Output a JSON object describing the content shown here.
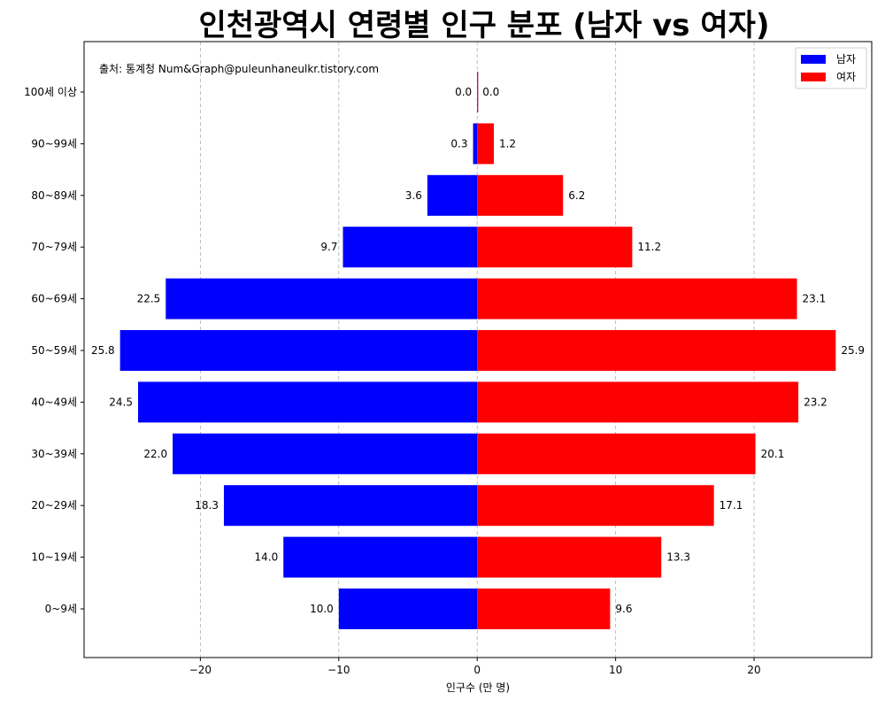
{
  "chart_data": {
    "type": "bar",
    "orientation": "horizontal",
    "title": "인천광역시 연령별 인구 분포 (남자 vs 여자)",
    "xlabel": "인구수 (만 명)",
    "ylabel": "",
    "annotation": "출처: 통계청 Num&Graph@puleunhaneulkr.tistory.com",
    "xlim": [
      -28.4,
      28.5
    ],
    "xticks": [
      -20,
      -10,
      0,
      10,
      20
    ],
    "xtick_labels": [
      "−20",
      "−10",
      "0",
      "10",
      "20"
    ],
    "grid": "x",
    "legend_position": "top-right",
    "categories": [
      "0~9세",
      "10~19세",
      "20~29세",
      "30~39세",
      "40~49세",
      "50~59세",
      "60~69세",
      "70~79세",
      "80~89세",
      "90~99세",
      "100세 이상"
    ],
    "series": [
      {
        "name": "남자",
        "color": "#0000ff",
        "values": [
          -10.0,
          -14.0,
          -18.3,
          -22.0,
          -24.5,
          -25.8,
          -22.5,
          -9.7,
          -3.6,
          -0.3,
          -0.0
        ],
        "labels": [
          "10.0",
          "14.0",
          "18.3",
          "22.0",
          "24.5",
          "25.8",
          "22.5",
          "9.7",
          "3.6",
          "0.3",
          "0.0"
        ]
      },
      {
        "name": "여자",
        "color": "#ff0000",
        "values": [
          9.6,
          13.3,
          17.1,
          20.1,
          23.2,
          25.9,
          23.1,
          11.2,
          6.2,
          1.2,
          0.0
        ],
        "labels": [
          "9.6",
          "13.3",
          "17.1",
          "20.1",
          "23.2",
          "25.9",
          "23.1",
          "11.2",
          "6.2",
          "1.2",
          "0.0"
        ]
      }
    ]
  }
}
